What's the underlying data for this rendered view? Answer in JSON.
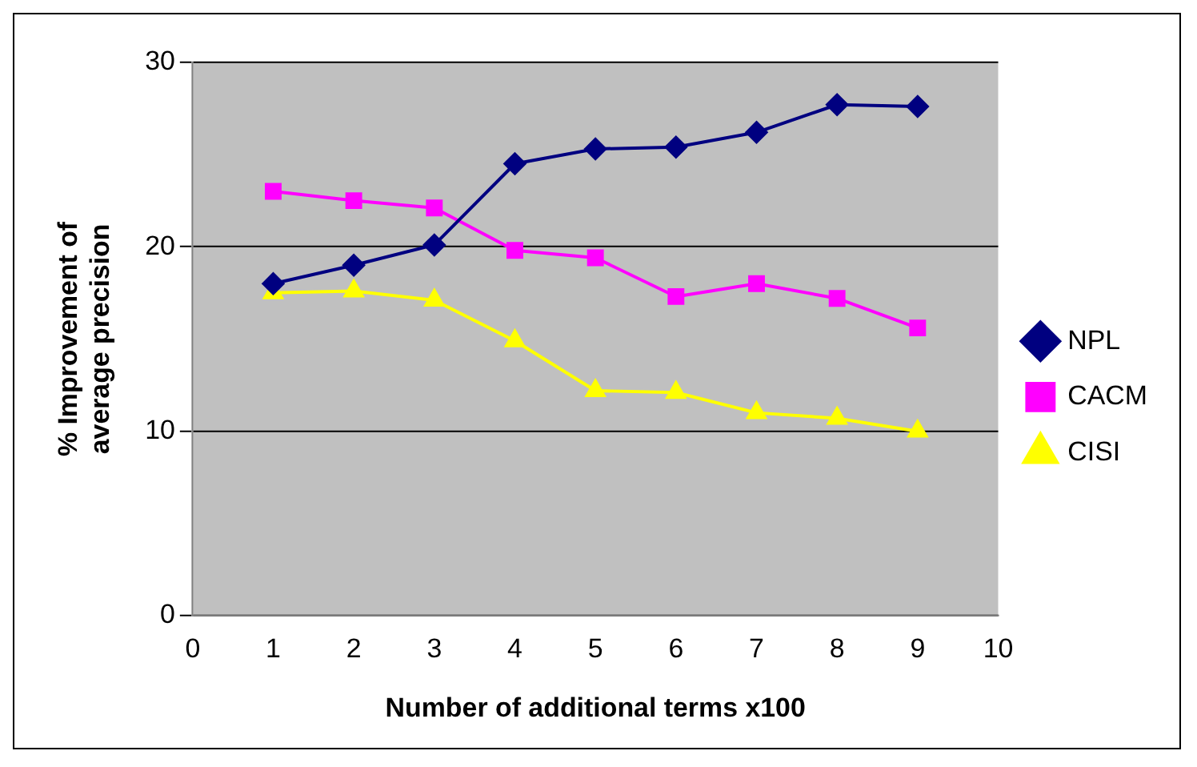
{
  "chart_data": {
    "type": "line",
    "xlabel": "Number of additional terms x100",
    "ylabel": "% Improvement of average precision",
    "x": [
      1,
      2,
      3,
      4,
      5,
      6,
      7,
      8,
      9
    ],
    "series": [
      {
        "name": "NPL",
        "color": "#000080",
        "marker": "diamond",
        "values": [
          18.0,
          19.0,
          20.1,
          24.5,
          25.3,
          25.4,
          26.2,
          27.7,
          27.6
        ]
      },
      {
        "name": "CACM",
        "color": "#ff00ff",
        "marker": "square",
        "values": [
          23.0,
          22.5,
          22.1,
          19.8,
          19.4,
          17.3,
          18.0,
          17.2,
          15.6
        ]
      },
      {
        "name": "CISI",
        "color": "#ffff00",
        "marker": "triangle",
        "values": [
          17.5,
          17.6,
          17.1,
          14.9,
          12.2,
          12.1,
          11.0,
          10.7,
          10.0
        ]
      }
    ],
    "xlim": [
      0,
      10
    ],
    "xticks": [
      0,
      1,
      2,
      3,
      4,
      5,
      6,
      7,
      8,
      9,
      10
    ],
    "ylim": [
      0,
      30
    ],
    "yticks": [
      0,
      10,
      20,
      30
    ],
    "grid": "y",
    "legend": "right",
    "line_style": "solid"
  }
}
